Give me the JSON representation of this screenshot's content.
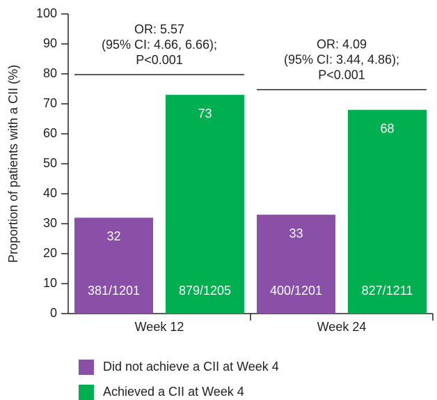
{
  "chart_data": {
    "type": "bar",
    "y_label": "Proportion of patients with a CII (%)",
    "categories": [
      "Week 12",
      "Week 24"
    ],
    "series": [
      {
        "name": "Did not achieve a CII at Week 4",
        "color": "#8a4fa6",
        "values": [
          32,
          33
        ],
        "counts": [
          "381/1201",
          "400/1201"
        ]
      },
      {
        "name": "Achieved a CII at Week 4",
        "color": "#00b050",
        "values": [
          73,
          68
        ],
        "counts": [
          "879/1205",
          "827/1211"
        ]
      }
    ],
    "annotations": [
      {
        "lines": [
          "OR: 5.57",
          "(95% CI: 4.66, 6.66);",
          "P<0.001"
        ]
      },
      {
        "lines": [
          "OR: 4.09",
          "(95% CI: 3.44, 4.86);",
          "P<0.001"
        ]
      }
    ],
    "ylim": [
      0,
      100
    ],
    "yticks": [
      0,
      10,
      20,
      30,
      40,
      50,
      60,
      70,
      80,
      90,
      100
    ]
  }
}
